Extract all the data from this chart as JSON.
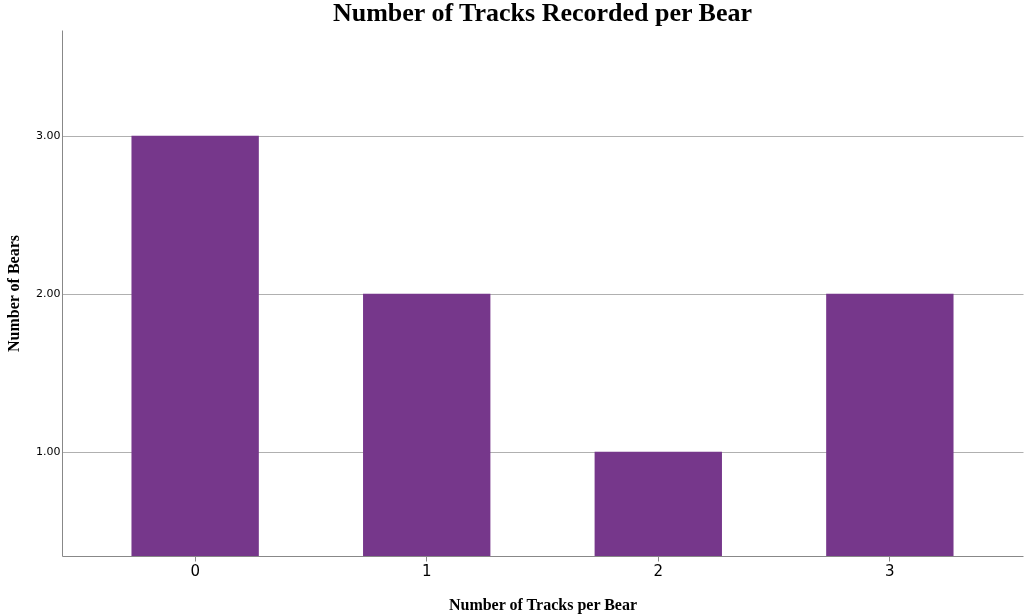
{
  "chart_data": {
    "type": "bar",
    "title": "Number of Tracks Recorded per Bear",
    "xlabel": "Number of Tracks per Bear",
    "ylabel": "Number of Bears",
    "categories": [
      "0",
      "1",
      "2",
      "3"
    ],
    "values": [
      3,
      2,
      1,
      2
    ],
    "color": "#76378b",
    "ylim": [
      0.34,
      3.67
    ],
    "yticks": [
      {
        "value": 1,
        "label": "1.00"
      },
      {
        "value": 2,
        "label": "2.00"
      },
      {
        "value": 3,
        "label": "3.00"
      }
    ],
    "grid": "y"
  }
}
